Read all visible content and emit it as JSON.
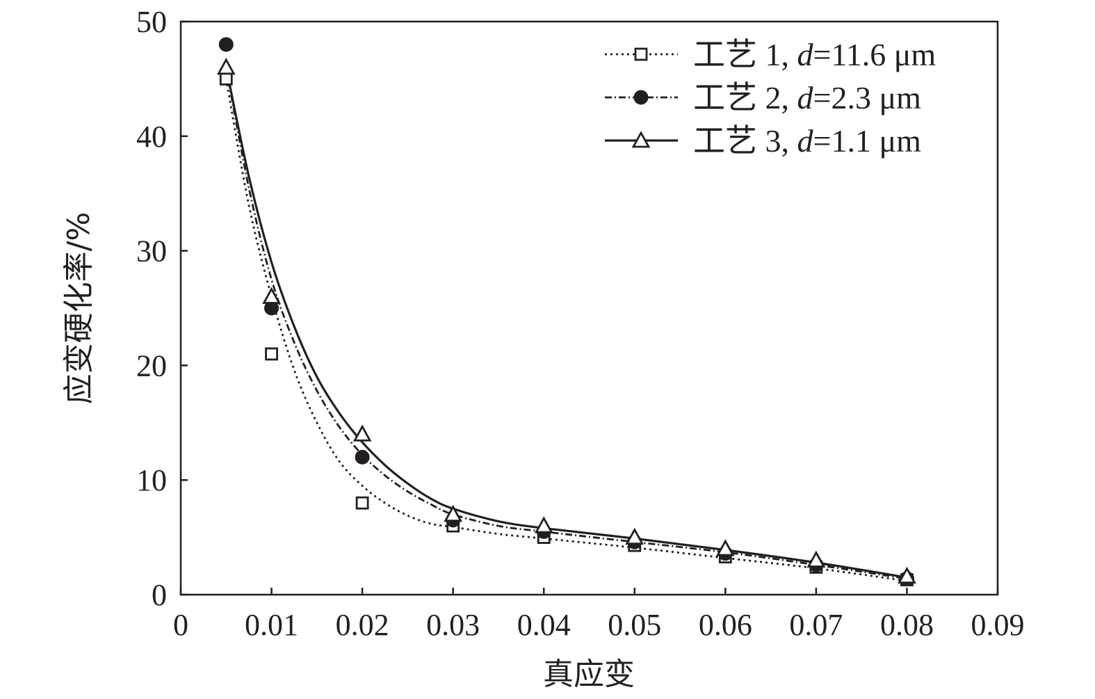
{
  "chart_data": {
    "type": "line",
    "title": "",
    "xlabel": "真应变",
    "ylabel": "应变硬化率/%",
    "xlim": [
      0,
      0.09
    ],
    "ylim": [
      0,
      50
    ],
    "xticks": [
      "0",
      "0.01",
      "0.02",
      "0.03",
      "0.04",
      "0.05",
      "0.06",
      "0.07",
      "0.08",
      "0.09"
    ],
    "yticks": [
      "0",
      "10",
      "20",
      "30",
      "40",
      "50"
    ],
    "legend_position": "top-right",
    "grid": false,
    "x": [
      0.005,
      0.01,
      0.02,
      0.03,
      0.04,
      0.05,
      0.06,
      0.07,
      0.08
    ],
    "series": [
      {
        "name_prefix": "工艺 1, ",
        "name_var": "d",
        "name_suffix": "=11.6 μm",
        "marker": "square-open",
        "line_style": "dotted",
        "values": [
          45,
          21,
          8,
          6,
          5,
          4.3,
          3.3,
          2.4,
          1.3
        ],
        "fit": [
          [
            0.005,
            45
          ],
          [
            0.0075,
            34
          ],
          [
            0.01,
            26
          ],
          [
            0.0125,
            19.6
          ],
          [
            0.015,
            15
          ],
          [
            0.0175,
            11.6
          ],
          [
            0.02,
            9.5
          ],
          [
            0.0225,
            8
          ],
          [
            0.025,
            6.9
          ],
          [
            0.0275,
            6.2
          ],
          [
            0.03,
            5.9
          ],
          [
            0.035,
            5.3
          ],
          [
            0.04,
            4.9
          ],
          [
            0.05,
            4.1
          ],
          [
            0.06,
            3.2
          ],
          [
            0.07,
            2.3
          ],
          [
            0.08,
            1.2
          ]
        ]
      },
      {
        "name_prefix": "工艺 2, ",
        "name_var": "d",
        "name_suffix": "=2.3 μm",
        "marker": "circle-filled",
        "line_style": "dashdot",
        "values": [
          48,
          25,
          12,
          6.5,
          5.5,
          4.6,
          3.6,
          2.6,
          1.4
        ],
        "fit": [
          [
            0.005,
            46
          ],
          [
            0.0075,
            35.5
          ],
          [
            0.01,
            27.5
          ],
          [
            0.0125,
            22
          ],
          [
            0.015,
            17.8
          ],
          [
            0.0175,
            14.6
          ],
          [
            0.02,
            12.2
          ],
          [
            0.0225,
            10.4
          ],
          [
            0.025,
            9
          ],
          [
            0.0275,
            7.9
          ],
          [
            0.03,
            7
          ],
          [
            0.035,
            6
          ],
          [
            0.04,
            5.5
          ],
          [
            0.05,
            4.6
          ],
          [
            0.06,
            3.7
          ],
          [
            0.07,
            2.6
          ],
          [
            0.08,
            1.4
          ]
        ]
      },
      {
        "name_prefix": "工艺 3, ",
        "name_var": "d",
        "name_suffix": "=1.1 μm",
        "marker": "triangle-open",
        "line_style": "solid",
        "values": [
          46,
          26,
          14,
          7,
          6,
          5,
          4,
          3,
          1.6
        ],
        "fit": [
          [
            0.005,
            46
          ],
          [
            0.0075,
            36.5
          ],
          [
            0.01,
            29
          ],
          [
            0.0125,
            23.4
          ],
          [
            0.015,
            19
          ],
          [
            0.0175,
            15.8
          ],
          [
            0.02,
            13.3
          ],
          [
            0.0225,
            11.3
          ],
          [
            0.025,
            9.7
          ],
          [
            0.0275,
            8.4
          ],
          [
            0.03,
            7.5
          ],
          [
            0.035,
            6.4
          ],
          [
            0.04,
            5.8
          ],
          [
            0.05,
            4.9
          ],
          [
            0.06,
            3.9
          ],
          [
            0.07,
            2.8
          ],
          [
            0.08,
            1.5
          ]
        ]
      }
    ]
  }
}
